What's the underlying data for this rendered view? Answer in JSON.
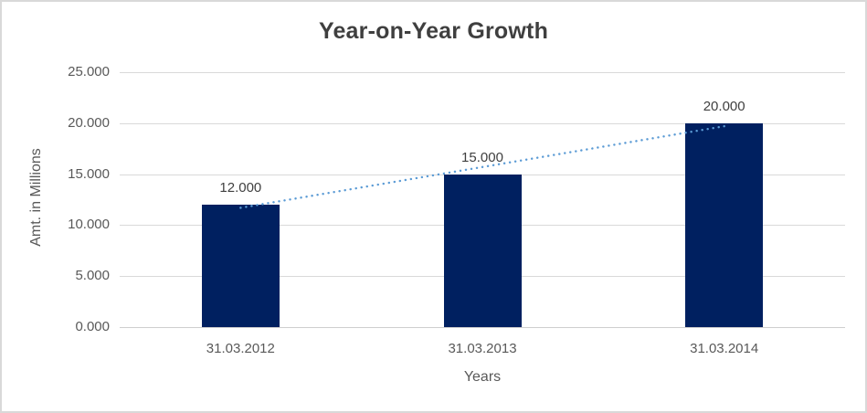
{
  "chart_data": {
    "type": "bar",
    "title": "Year-on-Year Growth",
    "categories": [
      "31.03.2012",
      "31.03.2013",
      "31.03.2014"
    ],
    "values": [
      12,
      15,
      20
    ],
    "data_labels": [
      "12.000",
      "15.000",
      "20.000"
    ],
    "xlabel": "Years",
    "ylabel": "Amt. in Millions",
    "ylim": [
      0,
      25
    ],
    "ytick_values": [
      0,
      5,
      10,
      15,
      20,
      25
    ],
    "ytick_labels": [
      "0.000",
      "5.000",
      "10.000",
      "15.000",
      "20.000",
      "25.000"
    ],
    "grid": true,
    "legend": "none",
    "bar_color": "#002060",
    "gridline_color": "#d9d9d9",
    "tick_label_color": "#595959",
    "data_label_color": "#404040",
    "title_color": "#3f3f3f",
    "background_color": "#ffffff",
    "border_color": "#d9d9d9",
    "trendline": {
      "type": "linear",
      "style": "dotted",
      "color": "#5b9bd5",
      "start_value": 11.7,
      "end_value": 19.7
    }
  }
}
